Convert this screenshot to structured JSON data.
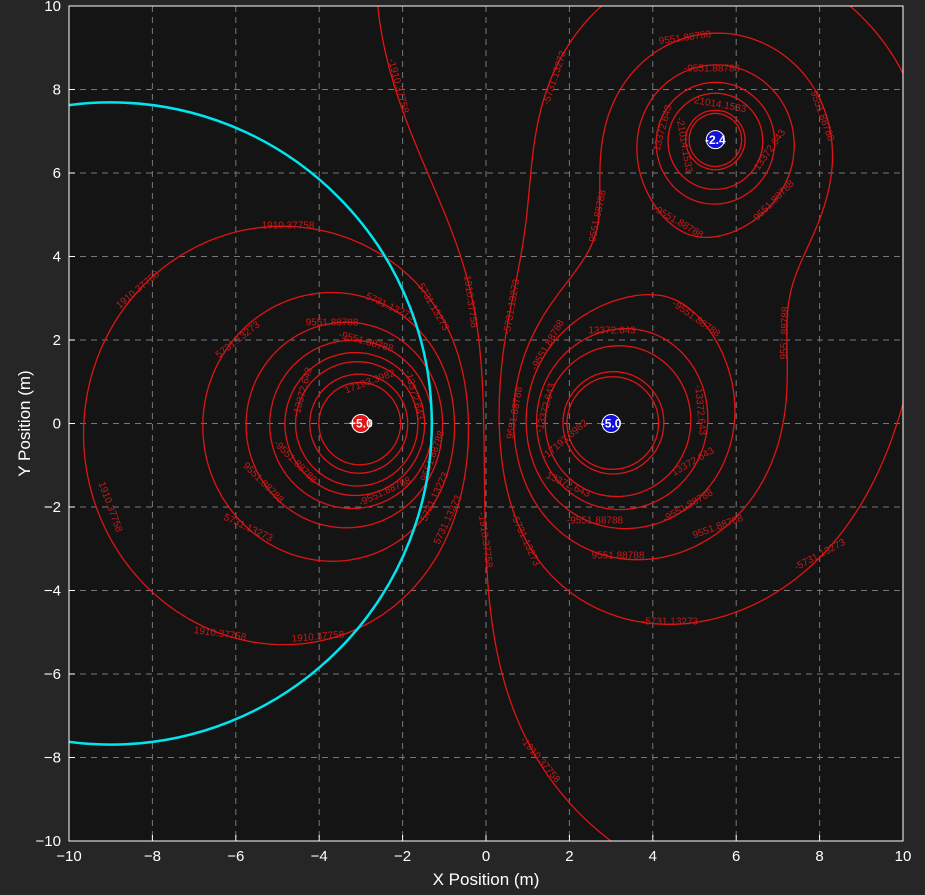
{
  "chart_data": {
    "type": "contour",
    "xlabel": "X Position (m)",
    "ylabel": "Y Position (m)",
    "xlim": [
      -10,
      10
    ],
    "ylim": [
      -10,
      10
    ],
    "xticks": [
      -10,
      -8,
      -6,
      -4,
      -2,
      0,
      2,
      4,
      6,
      8,
      10
    ],
    "yticks": [
      -10,
      -8,
      -6,
      -4,
      -2,
      0,
      2,
      4,
      6,
      8,
      10
    ],
    "grid": true,
    "background_color": "#141414",
    "contour_color": "#e01414",
    "contour_levels": [
      "1910.37758",
      "-1910.37758",
      "5731.13273",
      "-5731.13273",
      "9551.88788",
      "-9551.88788",
      "13372.643",
      "-13372.643",
      "17193.3982",
      "-17193.3982",
      "21014.1533",
      "-21014.1533",
      "28655.6638",
      "-32476.4188",
      "36297.1738",
      "-36297.1738"
    ],
    "charges": [
      {
        "label": "+5.0",
        "x": -3,
        "y": 0,
        "q": 5.0,
        "color": "#e01414"
      },
      {
        "label": "-5.0",
        "x": 3,
        "y": 0,
        "q": -5.0,
        "color": "#1010d8"
      },
      {
        "label": "-2.4",
        "x": 5.5,
        "y": 6.8,
        "q": -2.4,
        "color": "#1010d8"
      }
    ],
    "boundary_circle": {
      "center": [
        -9,
        0
      ],
      "radius": 7.7,
      "color": "#00e5ee"
    }
  }
}
